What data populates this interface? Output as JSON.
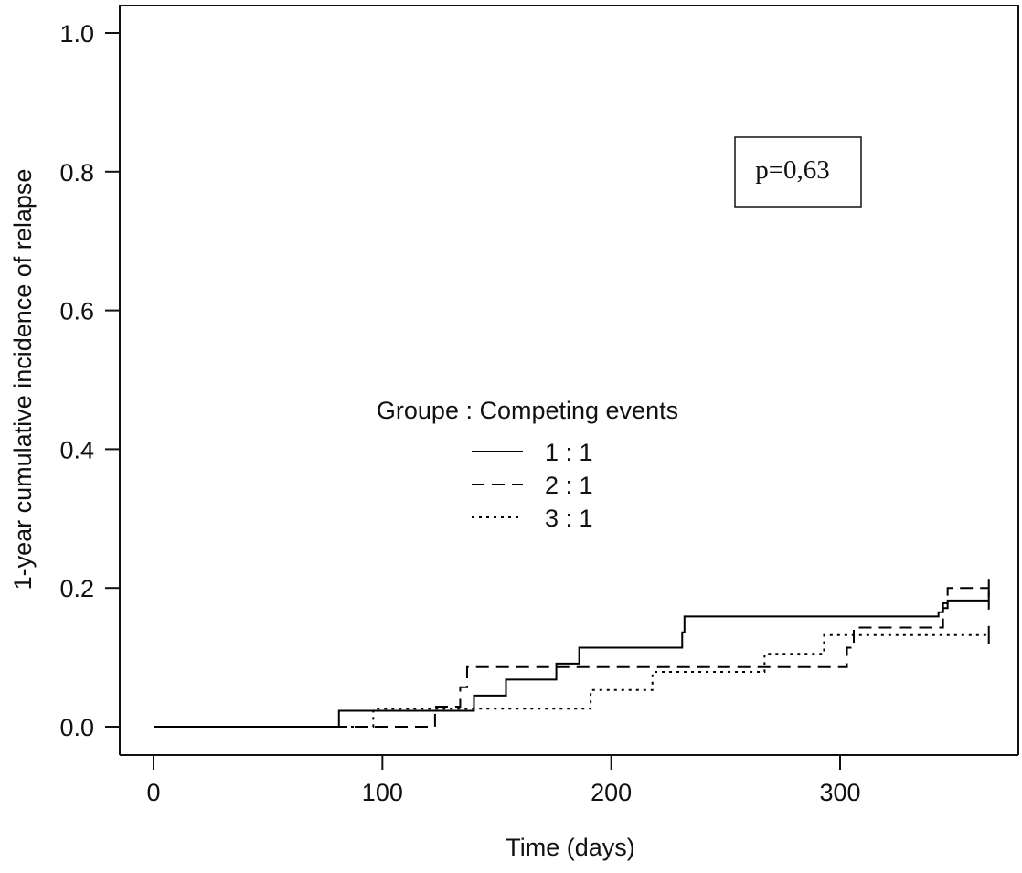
{
  "chart_data": {
    "type": "line",
    "step": true,
    "xlabel": "Time (days)",
    "ylabel": "1-year cumulative incidence of relapse",
    "xlim": [
      -15,
      378
    ],
    "ylim": [
      -0.04,
      1.04
    ],
    "xticks": [
      0,
      100,
      200,
      300
    ],
    "xtick_labels": [
      "0",
      "100",
      "200",
      "300"
    ],
    "yticks": [
      0.0,
      0.2,
      0.4,
      0.6,
      0.8,
      1.0
    ],
    "ytick_labels": [
      "0.0",
      "0.2",
      "0.4",
      "0.6",
      "0.8",
      "1.0"
    ],
    "grid": false,
    "annotation": "p=0,63",
    "legend": {
      "title": "Groupe : Competing events",
      "placement": "center",
      "entries": [
        {
          "label": "1 : 1",
          "linestyle": "solid"
        },
        {
          "label": "2 : 1",
          "linestyle": "dashed"
        },
        {
          "label": "3 : 1",
          "linestyle": "dotted"
        }
      ]
    },
    "series": [
      {
        "linestyle": "solid",
        "color": "#000000",
        "censor_end": true,
        "points": [
          [
            0,
            0
          ],
          [
            81,
            0.023
          ],
          [
            140,
            0.045
          ],
          [
            154,
            0.068
          ],
          [
            176,
            0.091
          ],
          [
            186,
            0.114
          ],
          [
            231,
            0.136
          ],
          [
            232,
            0.159
          ],
          [
            343,
            0.165
          ],
          [
            345,
            0.178
          ],
          [
            347,
            0.182
          ],
          [
            365,
            0.182
          ]
        ]
      },
      {
        "linestyle": "dashed",
        "color": "#000000",
        "censor_end": true,
        "points": [
          [
            0,
            0
          ],
          [
            122,
            0
          ],
          [
            123,
            0.029
          ],
          [
            134,
            0.057
          ],
          [
            137,
            0.086
          ],
          [
            303,
            0.114
          ],
          [
            306,
            0.143
          ],
          [
            345,
            0.171
          ],
          [
            347,
            0.2
          ],
          [
            365,
            0.2
          ]
        ]
      },
      {
        "linestyle": "dotted",
        "color": "#000000",
        "censor_end": true,
        "points": [
          [
            0,
            0
          ],
          [
            96,
            0.026
          ],
          [
            191,
            0.053
          ],
          [
            218,
            0.079
          ],
          [
            267,
            0.105
          ],
          [
            293,
            0.132
          ],
          [
            365,
            0.132
          ]
        ]
      }
    ]
  }
}
